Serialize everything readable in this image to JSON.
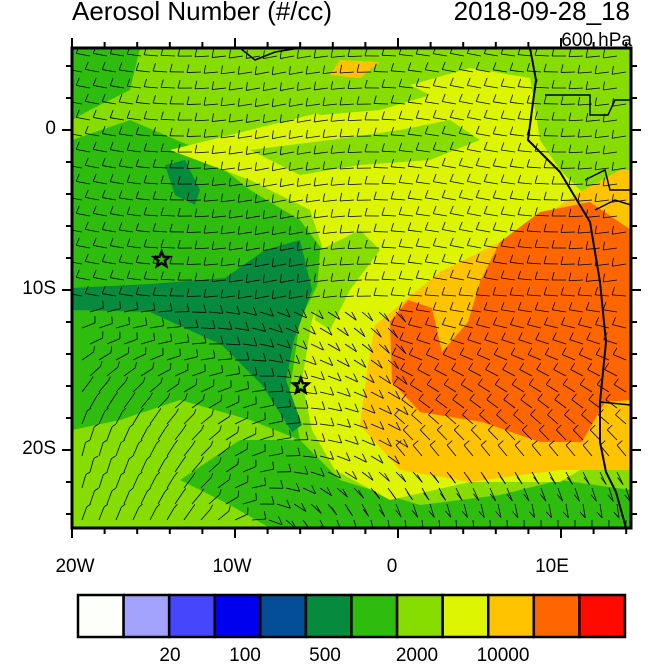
{
  "title": "Aerosol Number (#/cc)",
  "datetime": "2018-09-28_18",
  "level": "600 hPa",
  "lat_labels": [
    "0",
    "10S",
    "20S"
  ],
  "lon_labels": [
    "20W",
    "10W",
    "0",
    "10E"
  ],
  "colorbar": {
    "colors": [
      "#fdfffa",
      "#a3a3fd",
      "#4646fd",
      "#0000ee",
      "#034e96",
      "#058a3e",
      "#2ebd0e",
      "#88dd00",
      "#ddf500",
      "#ffc300",
      "#ff6600",
      "#ff0a00"
    ],
    "labels": [
      "20",
      "100",
      "500",
      "2000",
      "10000"
    ]
  },
  "markers": [
    {
      "symbol": "star",
      "lon": -14.4,
      "lat": -8.1
    },
    {
      "symbol": "star",
      "lon": -5.7,
      "lat": -16.0
    }
  ]
}
